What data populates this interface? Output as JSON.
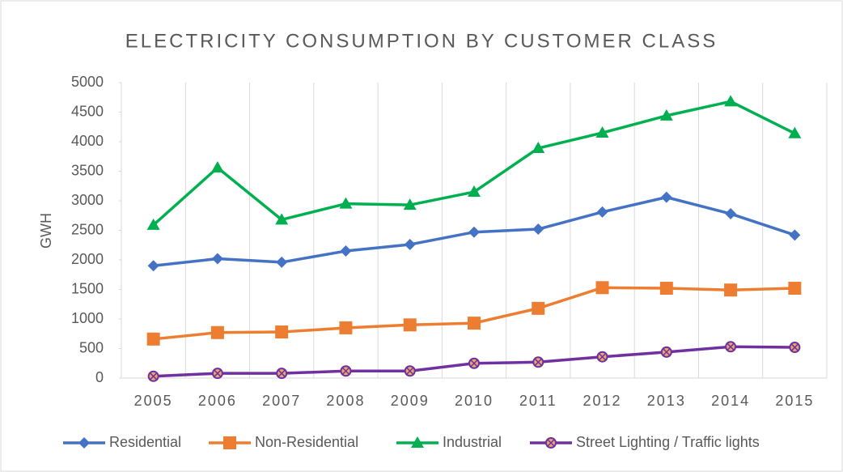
{
  "chart_data": {
    "type": "line",
    "title": "ELECTRICITY CONSUMPTION BY CUSTOMER CLASS",
    "y_label": "GWH",
    "categories": [
      "2005",
      "2006",
      "2007",
      "2008",
      "2009",
      "2010",
      "2011",
      "2012",
      "2013",
      "2014",
      "2015"
    ],
    "series": [
      {
        "name": "Residential",
        "color": "#4472c4",
        "marker": "diamond",
        "values": [
          1900,
          2020,
          1960,
          2150,
          2260,
          2470,
          2520,
          2810,
          3060,
          2780,
          2420
        ]
      },
      {
        "name": "Non-Residential",
        "color": "#ed7d31",
        "marker": "square",
        "values": [
          660,
          770,
          780,
          850,
          900,
          930,
          1180,
          1530,
          1520,
          1490,
          1520
        ]
      },
      {
        "name": "Industrial",
        "color": "#00b050",
        "marker": "triangle",
        "values": [
          2590,
          3560,
          2680,
          2950,
          2930,
          3150,
          3890,
          4150,
          4440,
          4680,
          4140
        ]
      },
      {
        "name": "Street Lighting / Traffic lights",
        "color": "#7030a0",
        "marker": "circle-x",
        "values": [
          30,
          80,
          80,
          120,
          120,
          250,
          270,
          360,
          440,
          530,
          520
        ]
      }
    ],
    "ylim": [
      0,
      5000
    ],
    "yticks": [
      0,
      500,
      1000,
      1500,
      2000,
      2500,
      3000,
      3500,
      4000,
      4500,
      5000
    ],
    "grid": "vertical",
    "legend": "bottom"
  }
}
